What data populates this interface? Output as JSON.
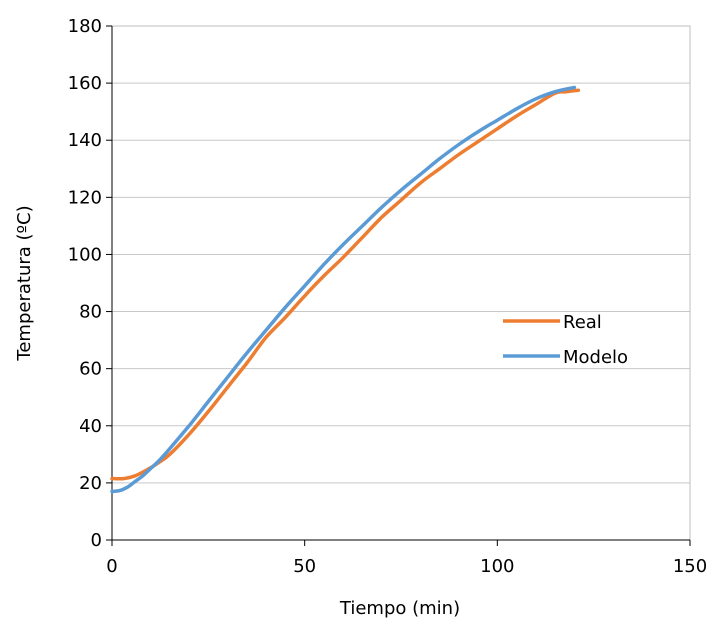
{
  "chart_data": {
    "type": "line",
    "title": "",
    "xlabel": "Tiempo (min)",
    "ylabel": "Temperatura (ºC)",
    "xlim": [
      0,
      150
    ],
    "ylim": [
      0,
      180
    ],
    "x_ticks": [
      0,
      50,
      100,
      150
    ],
    "y_ticks": [
      0,
      20,
      40,
      60,
      80,
      100,
      120,
      140,
      160,
      180
    ],
    "grid": "horizontal",
    "legend_position": "right",
    "series": [
      {
        "name": "Real",
        "color": "#ED7D31",
        "x": [
          0,
          3,
          6,
          9,
          12,
          15,
          20,
          25,
          30,
          35,
          40,
          45,
          50,
          55,
          60,
          65,
          70,
          75,
          80,
          85,
          90,
          95,
          100,
          105,
          110,
          115,
          118,
          121
        ],
        "y": [
          21.5,
          21.5,
          22.5,
          24.5,
          27,
          30,
          37,
          45,
          53.5,
          62,
          71,
          78,
          85.5,
          92.5,
          99,
          106,
          113,
          119,
          125,
          130,
          135,
          139.5,
          144,
          148.5,
          152.5,
          156.5,
          157,
          157.5
        ]
      },
      {
        "name": "Modelo",
        "color": "#5B9BD5",
        "x": [
          0,
          2,
          4,
          6,
          8,
          10,
          12,
          15,
          20,
          25,
          30,
          35,
          40,
          45,
          50,
          55,
          60,
          65,
          70,
          75,
          80,
          85,
          90,
          95,
          100,
          105,
          110,
          115,
          120
        ],
        "y": [
          17,
          17.3,
          18.5,
          20.5,
          22.5,
          25,
          27.5,
          32,
          40,
          48.5,
          57,
          65.5,
          73.5,
          81.5,
          89,
          96.5,
          103.5,
          110,
          116.5,
          122.5,
          128,
          133.5,
          138.5,
          143,
          147,
          151,
          154.5,
          157,
          158.5
        ]
      }
    ]
  }
}
